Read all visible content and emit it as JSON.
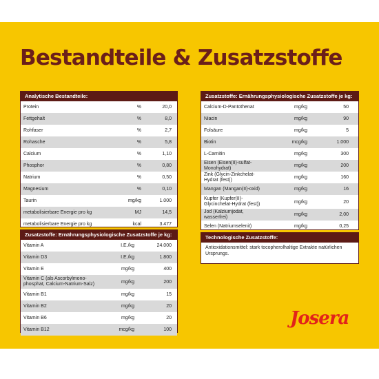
{
  "title": "Bestandteile & Zusatzstoffe",
  "brand": "Josera",
  "colors": {
    "background": "#f7c600",
    "header": "#5c1a15",
    "title": "#6b1f1a",
    "logo": "#e2231a"
  },
  "analytical": {
    "header": "Analytische Bestandteile:",
    "rows": [
      {
        "name": "Protein",
        "unit": "%",
        "value": "20,0"
      },
      {
        "name": "Fettgehalt",
        "unit": "%",
        "value": "8,0"
      },
      {
        "name": "Rohfaser",
        "unit": "%",
        "value": "2,7"
      },
      {
        "name": "Rohasche",
        "unit": "%",
        "value": "5,8"
      },
      {
        "name": "Calcium",
        "unit": "%",
        "value": "1,10"
      },
      {
        "name": "Phosphor",
        "unit": "%",
        "value": "0,80"
      },
      {
        "name": "Natrium",
        "unit": "%",
        "value": "0,50"
      },
      {
        "name": "Magnesium",
        "unit": "%",
        "value": "0,10"
      },
      {
        "name": "Taurin",
        "unit": "mg/kg",
        "value": "1.000"
      },
      {
        "name": "metabolisierbare Energie pro kg",
        "unit": "MJ",
        "value": "14,5"
      },
      {
        "name": "metabolisierbare Energie pro kg",
        "unit": "kcal",
        "value": "3.477"
      }
    ]
  },
  "vitamins": {
    "header": "Zusatzstoffe: Ernährungsphysiologische Zusatzstoffe je kg:",
    "rows": [
      {
        "name": "Vitamin A",
        "unit": "I.E./kg",
        "value": "24.000"
      },
      {
        "name": "Vitamin D3",
        "unit": "I.E./kg",
        "value": "1.800"
      },
      {
        "name": "Vitamin E",
        "unit": "mg/kg",
        "value": "400"
      },
      {
        "name": "Vitamin C (als Ascorbylmono-phosphat, Calcium-Natrium-Salz)",
        "unit": "mg/kg",
        "value": "200"
      },
      {
        "name": "Vitamin B1",
        "unit": "mg/kg",
        "value": "15"
      },
      {
        "name": "Vitamin B2",
        "unit": "mg/kg",
        "value": "20"
      },
      {
        "name": "Vitamin B6",
        "unit": "mg/kg",
        "value": "20"
      },
      {
        "name": "Vitamin B12",
        "unit": "mcg/kg",
        "value": "100"
      }
    ]
  },
  "additives": {
    "header": "Zusatzstoffe: Ernährungsphysiologische Zusatzstoffe je kg:",
    "rows": [
      {
        "name": "Calcium-D-Pantothenat",
        "unit": "mg/kg",
        "value": "50"
      },
      {
        "name": "Niacin",
        "unit": "mg/kg",
        "value": "90"
      },
      {
        "name": "Folsäure",
        "unit": "mg/kg",
        "value": "5"
      },
      {
        "name": "Biotin",
        "unit": "mcg/kg",
        "value": "1.000"
      },
      {
        "name": "L-Carnitin",
        "unit": "mg/kg",
        "value": "300"
      },
      {
        "name": "Eisen (Eisen(II)-sulfat-Monohydrat)",
        "unit": "mg/kg",
        "value": "200"
      },
      {
        "name": "Zink (Glycin-Zinkchelat-Hydrat (fest))",
        "unit": "mg/kg",
        "value": "160"
      },
      {
        "name": "Mangan (Mangan(II)-oxid)",
        "unit": "mg/kg",
        "value": "16"
      },
      {
        "name": "Kupfer (Kupfer(II)-Glycinchelat-Hydrat (fest))",
        "unit": "mg/kg",
        "value": "20"
      },
      {
        "name": "Jod (Kalziumjodat, wasserfrei)",
        "unit": "mg/kg",
        "value": "2,00"
      },
      {
        "name": "Selen (Natriumselenit)",
        "unit": "mg/kg",
        "value": "0,25"
      }
    ]
  },
  "technological": {
    "header": "Technologische Zusatzstoffe:",
    "text": "Antioxidationsmittel: stark tocopherolhaltige Extrakte natürlichen Ursprungs."
  }
}
